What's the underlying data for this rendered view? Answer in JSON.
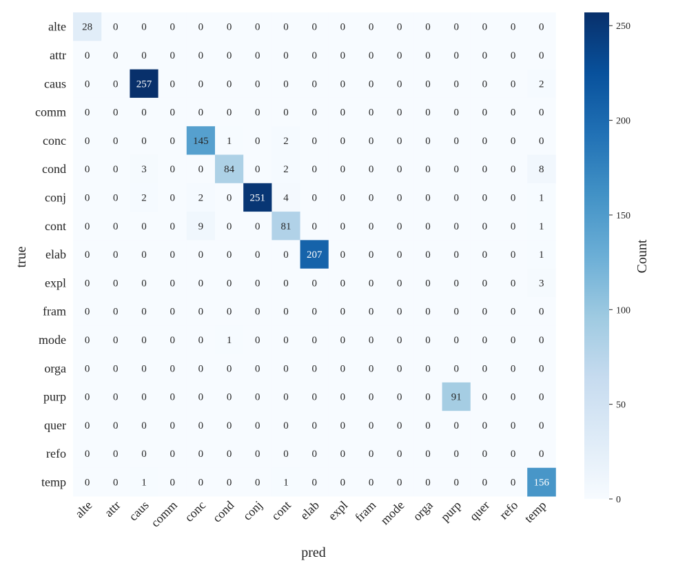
{
  "chart_data": {
    "type": "heatmap",
    "xlabel": "pred",
    "ylabel": "true",
    "x_categories": [
      "alte",
      "attr",
      "caus",
      "comm",
      "conc",
      "cond",
      "conj",
      "cont",
      "elab",
      "expl",
      "fram",
      "mode",
      "orga",
      "purp",
      "quer",
      "refo",
      "temp"
    ],
    "y_categories": [
      "alte",
      "attr",
      "caus",
      "comm",
      "conc",
      "cond",
      "conj",
      "cont",
      "elab",
      "expl",
      "fram",
      "mode",
      "orga",
      "purp",
      "quer",
      "refo",
      "temp"
    ],
    "values": [
      [
        28,
        0,
        0,
        0,
        0,
        0,
        0,
        0,
        0,
        0,
        0,
        0,
        0,
        0,
        0,
        0,
        0
      ],
      [
        0,
        0,
        0,
        0,
        0,
        0,
        0,
        0,
        0,
        0,
        0,
        0,
        0,
        0,
        0,
        0,
        0
      ],
      [
        0,
        0,
        257,
        0,
        0,
        0,
        0,
        0,
        0,
        0,
        0,
        0,
        0,
        0,
        0,
        0,
        2
      ],
      [
        0,
        0,
        0,
        0,
        0,
        0,
        0,
        0,
        0,
        0,
        0,
        0,
        0,
        0,
        0,
        0,
        0
      ],
      [
        0,
        0,
        0,
        0,
        145,
        1,
        0,
        2,
        0,
        0,
        0,
        0,
        0,
        0,
        0,
        0,
        0
      ],
      [
        0,
        0,
        3,
        0,
        0,
        84,
        0,
        2,
        0,
        0,
        0,
        0,
        0,
        0,
        0,
        0,
        8
      ],
      [
        0,
        0,
        2,
        0,
        2,
        0,
        251,
        4,
        0,
        0,
        0,
        0,
        0,
        0,
        0,
        0,
        1
      ],
      [
        0,
        0,
        0,
        0,
        9,
        0,
        0,
        81,
        0,
        0,
        0,
        0,
        0,
        0,
        0,
        0,
        1
      ],
      [
        0,
        0,
        0,
        0,
        0,
        0,
        0,
        0,
        207,
        0,
        0,
        0,
        0,
        0,
        0,
        0,
        1
      ],
      [
        0,
        0,
        0,
        0,
        0,
        0,
        0,
        0,
        0,
        0,
        0,
        0,
        0,
        0,
        0,
        0,
        3
      ],
      [
        0,
        0,
        0,
        0,
        0,
        0,
        0,
        0,
        0,
        0,
        0,
        0,
        0,
        0,
        0,
        0,
        0
      ],
      [
        0,
        0,
        0,
        0,
        0,
        1,
        0,
        0,
        0,
        0,
        0,
        0,
        0,
        0,
        0,
        0,
        0
      ],
      [
        0,
        0,
        0,
        0,
        0,
        0,
        0,
        0,
        0,
        0,
        0,
        0,
        0,
        0,
        0,
        0,
        0
      ],
      [
        0,
        0,
        0,
        0,
        0,
        0,
        0,
        0,
        0,
        0,
        0,
        0,
        0,
        91,
        0,
        0,
        0
      ],
      [
        0,
        0,
        0,
        0,
        0,
        0,
        0,
        0,
        0,
        0,
        0,
        0,
        0,
        0,
        0,
        0,
        0
      ],
      [
        0,
        0,
        0,
        0,
        0,
        0,
        0,
        0,
        0,
        0,
        0,
        0,
        0,
        0,
        0,
        0,
        0
      ],
      [
        0,
        0,
        1,
        0,
        0,
        0,
        0,
        1,
        0,
        0,
        0,
        0,
        0,
        0,
        0,
        0,
        156
      ]
    ],
    "colorbar": {
      "label": "Count",
      "min": 0,
      "max": 257,
      "ticks": [
        0,
        50,
        100,
        150,
        200,
        250
      ]
    },
    "colormap": "Blues",
    "colors": [
      "#f7fbff",
      "#deebf7",
      "#c6dbef",
      "#9ecae1",
      "#6baed6",
      "#4292c6",
      "#2171b5",
      "#08519c",
      "#08306b"
    ]
  }
}
